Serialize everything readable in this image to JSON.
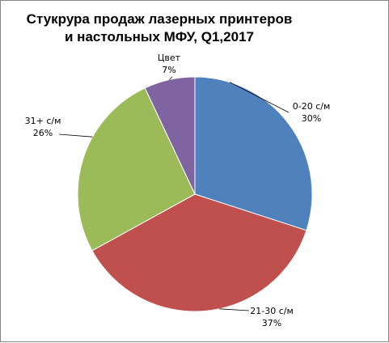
{
  "chart_data": {
    "type": "pie",
    "title": [
      "Стукрура продаж лазерных принтеров",
      "и настольных МФУ, Q1,2017"
    ],
    "start": "top",
    "direction": "clockwise",
    "legend": "none",
    "slices": [
      {
        "label": "0-20 с/м",
        "value": 30,
        "value_label": "30%",
        "color": "#4F81BD"
      },
      {
        "label": "21-30 с/м",
        "value": 37,
        "value_label": "37%",
        "color": "#C0504D"
      },
      {
        "label": "31+ с/м",
        "value": 26,
        "value_label": "26%",
        "color": "#9BBB59"
      },
      {
        "label": "Цвет",
        "value": 7,
        "value_label": "7%",
        "color": "#8064A2"
      }
    ]
  }
}
